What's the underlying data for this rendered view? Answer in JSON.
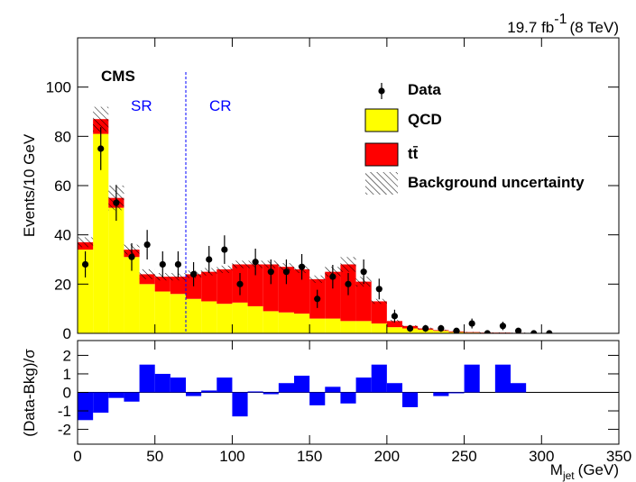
{
  "chart_data": [
    {
      "type": "histogram",
      "lumi": "19.7 fb",
      "lumi_exp": "-1",
      "energy": "(8 TeV)",
      "experiment": "CMS",
      "region_labels": [
        "SR",
        "CR"
      ],
      "region_boundary": 70,
      "ylabel": "Events/10 GeV",
      "bins": [
        0,
        10,
        20,
        30,
        40,
        50,
        60,
        70,
        80,
        90,
        100,
        110,
        120,
        130,
        140,
        150,
        160,
        170,
        180,
        190,
        200,
        210,
        220,
        230,
        240,
        250,
        260,
        270,
        280,
        290,
        300,
        310
      ],
      "series": [
        {
          "name": "QCD",
          "color": "#ffff00",
          "values": [
            34,
            81,
            51,
            31,
            20,
            17,
            16,
            14,
            13,
            12,
            12.5,
            11,
            9,
            8.5,
            8,
            6,
            6,
            5,
            5,
            4,
            2.5,
            2,
            1.5,
            1,
            0.5,
            0.3,
            0.2,
            0.2,
            0.1,
            0.1,
            0.1
          ]
        },
        {
          "name": "tt̄",
          "color": "#ff0000",
          "values": [
            3,
            6,
            4,
            3,
            4,
            6,
            7,
            10,
            12,
            14,
            15.5,
            17,
            19,
            18.5,
            18,
            16,
            19,
            23,
            16,
            9,
            2.5,
            1,
            0.5,
            0.3,
            0.3,
            0.2,
            0.1,
            0.1,
            0.1,
            0,
            0
          ]
        }
      ],
      "uncertainty": {
        "name": "Background uncertainty",
        "values": [
          2,
          5,
          5,
          2,
          2,
          1.5,
          1.5,
          1.5,
          1.5,
          1.5,
          1.5,
          1.5,
          1.5,
          1.5,
          1.5,
          1.5,
          2,
          3,
          2,
          1,
          0.5,
          0.3,
          0.3,
          0.2,
          0.2,
          0.1,
          0.1,
          0.1,
          0.1,
          0.1,
          0.1
        ]
      },
      "data": {
        "name": "Data",
        "color": "#000000",
        "values": [
          28,
          75,
          53,
          31,
          36,
          28,
          28,
          24,
          30,
          34,
          20,
          29,
          25,
          25,
          27,
          14,
          23,
          20,
          25,
          18,
          7,
          2,
          2,
          2,
          1,
          4,
          0,
          3,
          1,
          0,
          0
        ],
        "errors": [
          5.3,
          8.7,
          7.3,
          5.6,
          6,
          5.3,
          5.3,
          4.9,
          5.5,
          5.8,
          4.5,
          5.4,
          5,
          5,
          5.2,
          3.7,
          4.8,
          4.5,
          5,
          4.2,
          2.6,
          1.4,
          1.4,
          1.4,
          1,
          2,
          0,
          1.7,
          1,
          0,
          0
        ]
      },
      "xlim": [
        0,
        350
      ],
      "ylim": [
        0,
        120
      ],
      "yticks": [
        0,
        20,
        40,
        60,
        80,
        100
      ]
    },
    {
      "type": "histogram",
      "ylabel": "(Data-Bkg)/σ",
      "xlabel": "M",
      "xlabel_sub": "jet",
      "xlabel_unit": "(GeV)",
      "bins": [
        0,
        10,
        20,
        30,
        40,
        50,
        60,
        70,
        80,
        90,
        100,
        110,
        120,
        130,
        140,
        150,
        160,
        170,
        180,
        190,
        200,
        210,
        220,
        230,
        240,
        250,
        260,
        270,
        280,
        290,
        300,
        310
      ],
      "values": [
        -1.5,
        -1.1,
        -0.3,
        -0.5,
        1.5,
        1.0,
        0.8,
        -0.2,
        0.1,
        0.8,
        -1.3,
        0.05,
        -0.1,
        0.5,
        0.9,
        -0.7,
        0.3,
        -0.6,
        0.8,
        1.5,
        0.5,
        -0.8,
        0,
        -0.2,
        -0.05,
        1.5,
        0,
        1.5,
        0.5,
        0,
        0
      ],
      "color": "#0000ff",
      "xlim": [
        0,
        350
      ],
      "xticks": [
        0,
        50,
        100,
        150,
        200,
        250,
        300,
        350
      ],
      "ylim": [
        -2.8,
        2.8
      ],
      "yticks": [
        -2,
        -1,
        0,
        1,
        2
      ]
    }
  ]
}
